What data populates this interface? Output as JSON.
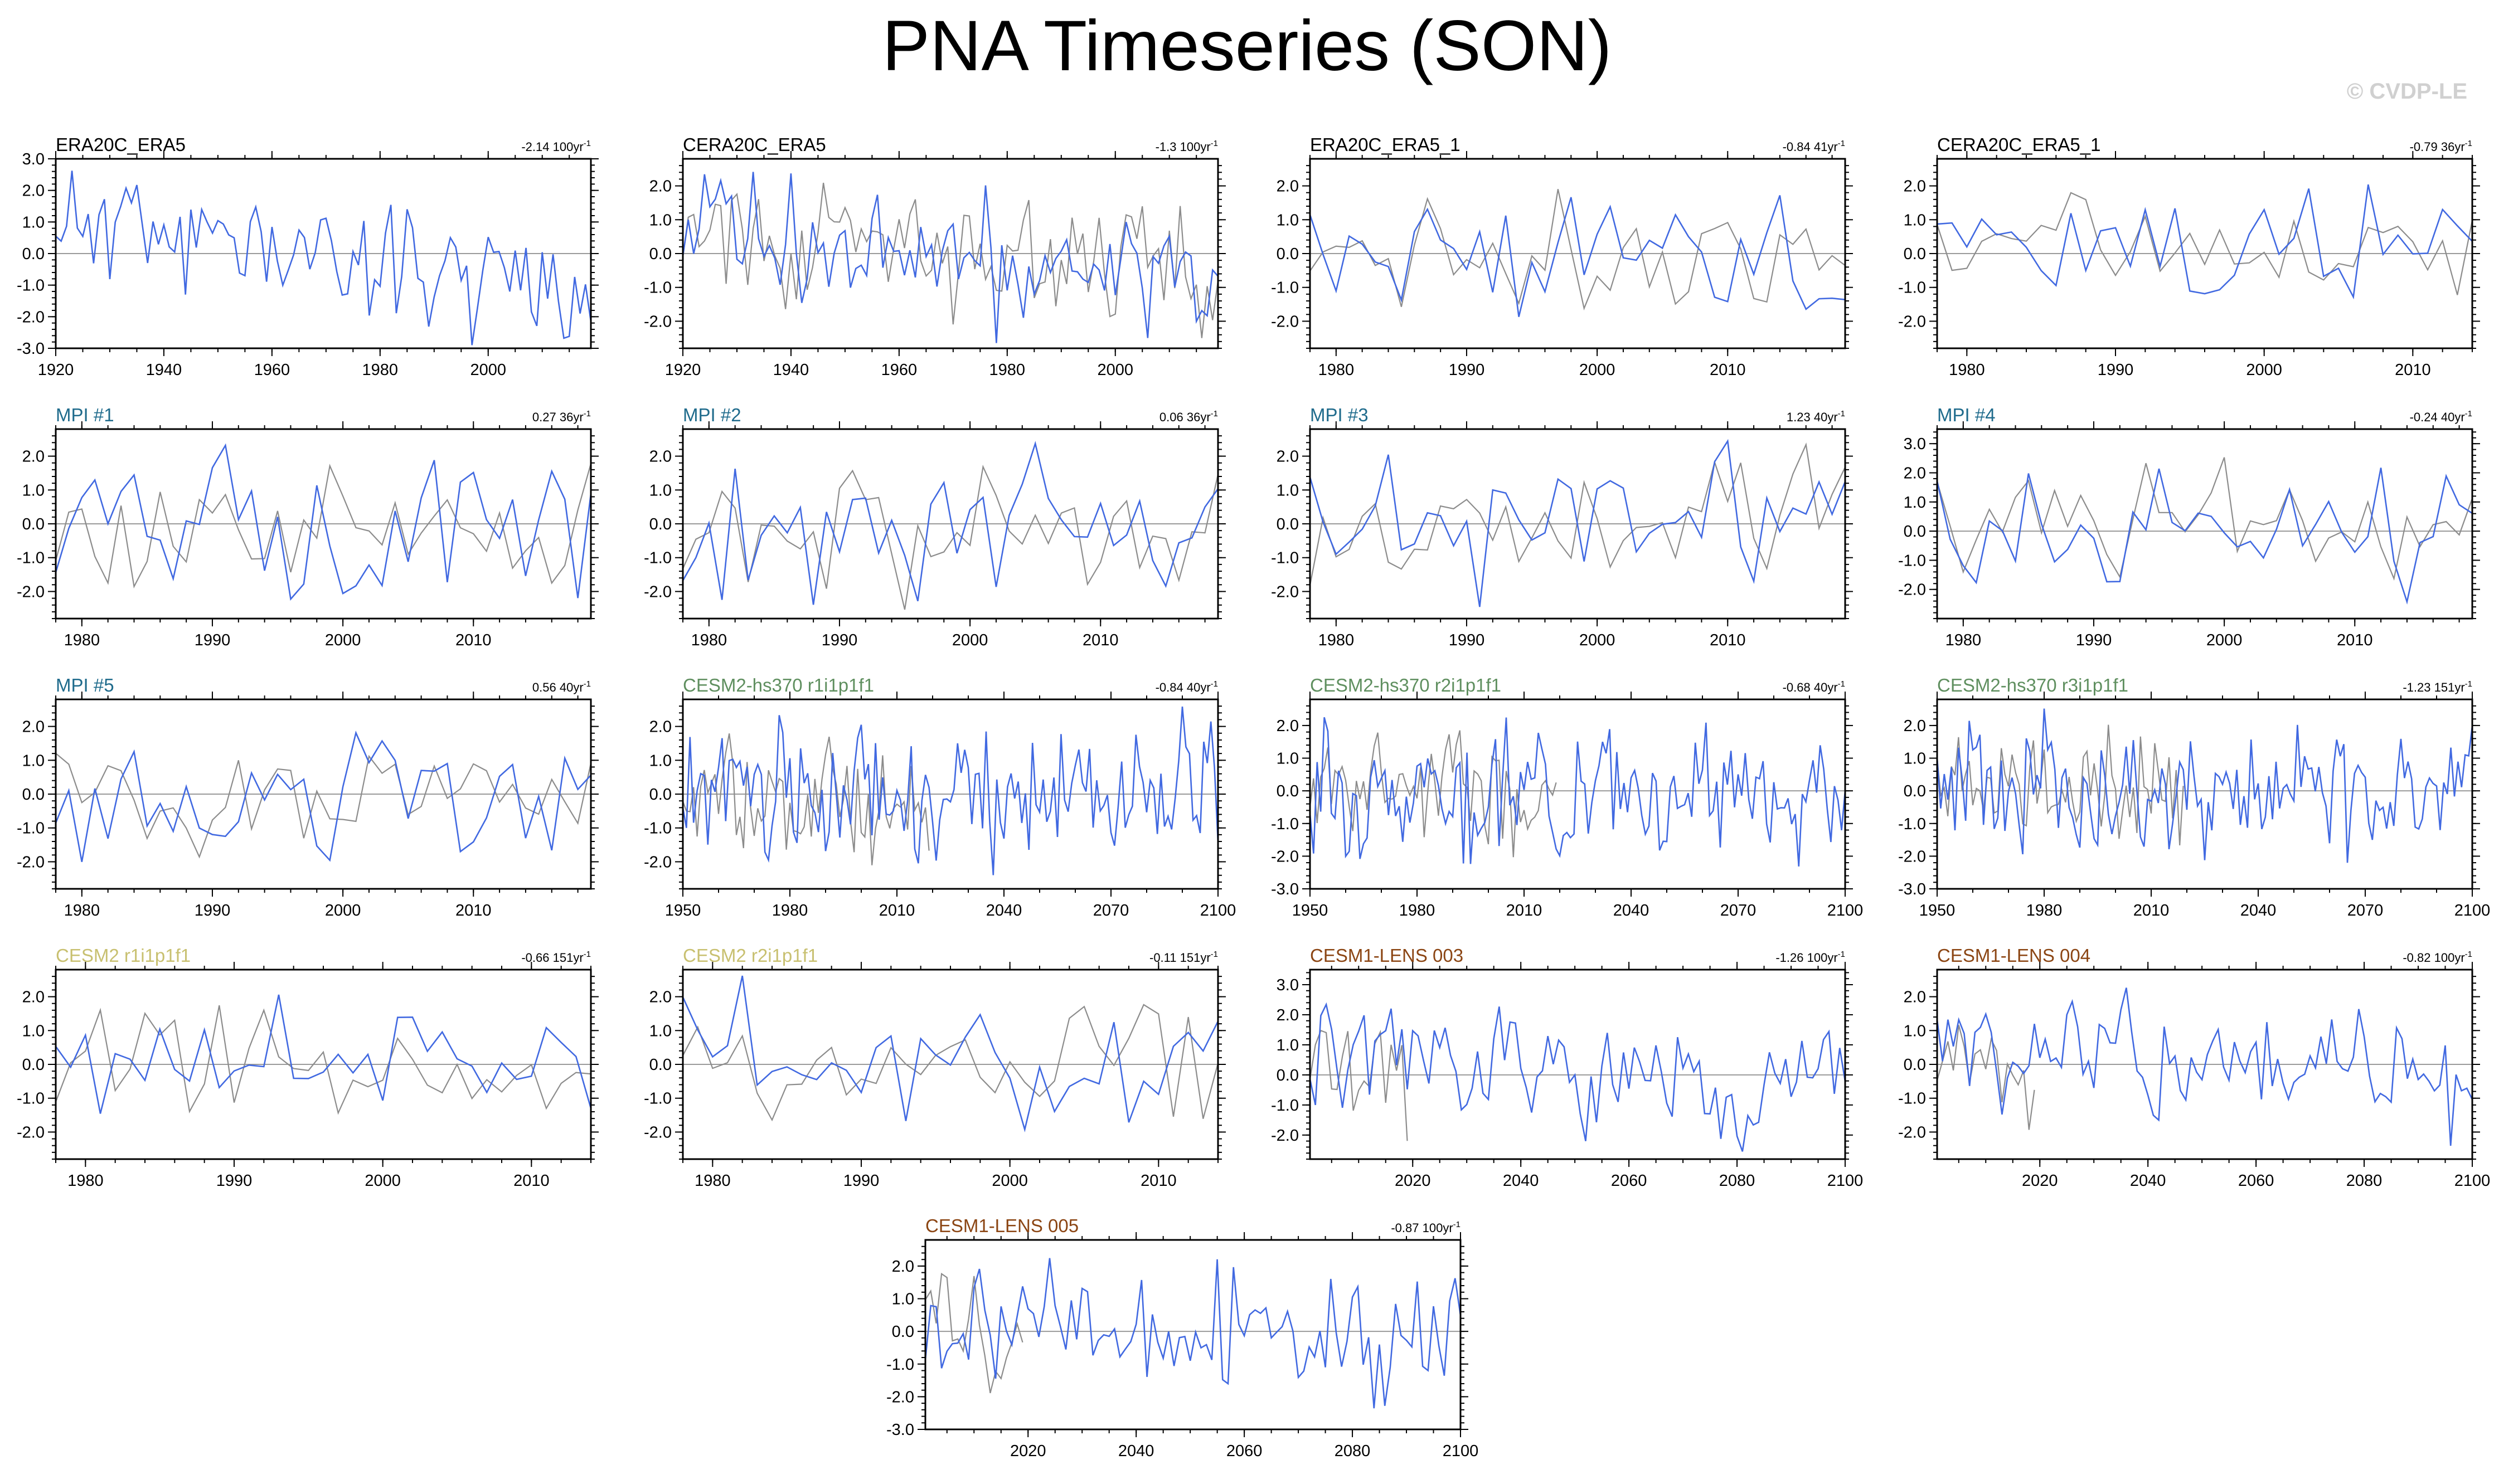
{
  "title": "PNA Timeseries (SON)",
  "credit": "© CVDP-LE",
  "colors": {
    "model": "#4169e1",
    "obs": "#8c8c8c",
    "zero": "#9a9a9a",
    "era": "#000000",
    "mpi": "#1f6b8c",
    "cesm2hs": "#5f8f5f",
    "cesm2": "#c8c070",
    "cesm1": "#8b4513"
  },
  "chart_data": [
    {
      "type": "line",
      "title": "ERA20C_ERA5",
      "title_color": "#000000",
      "trend_value": "-2.14",
      "trend_unit": "100yr",
      "trend_exp": "-1",
      "xlim": [
        1920,
        2019
      ],
      "xticks": [
        1920,
        1940,
        1960,
        1980,
        2000
      ],
      "ylim": [
        -3,
        3
      ],
      "yticks": [
        -3,
        -2,
        -1,
        0,
        1,
        2,
        3
      ],
      "ytick_labels": [
        "-3.0",
        "-2.0",
        "-1.0",
        "0.0",
        "1.0",
        "2.0",
        "3.0"
      ],
      "obs_series": false,
      "seed": 11,
      "amplitude": 0.9,
      "trend": -1.8
    },
    {
      "type": "line",
      "title": "CERA20C_ERA5",
      "title_color": "#000000",
      "trend_value": "-1.3",
      "trend_unit": "100yr",
      "trend_exp": "-1",
      "xlim": [
        1920,
        2019
      ],
      "xticks": [
        1920,
        1940,
        1960,
        1980,
        2000
      ],
      "ylim": [
        -2.8,
        2.8
      ],
      "yticks": [
        -2,
        -1,
        0,
        1,
        2
      ],
      "ytick_labels": [
        "-2.0",
        "-1.0",
        "0.0",
        "1.0",
        "2.0"
      ],
      "obs_series": true,
      "obs_until": 2019,
      "seed": 12,
      "amplitude": 0.95,
      "trend": -1.2
    },
    {
      "type": "line",
      "title": "ERA20C_ERA5_1",
      "title_color": "#000000",
      "trend_value": "-0.84",
      "trend_unit": "41yr",
      "trend_exp": "-1",
      "xlim": [
        1978,
        2019
      ],
      "xticks": [
        1980,
        1990,
        2000,
        2010
      ],
      "ylim": [
        -2.8,
        2.8
      ],
      "yticks": [
        -2,
        -1,
        0,
        1,
        2
      ],
      "ytick_labels": [
        "-2.0",
        "-1.0",
        "0.0",
        "1.0",
        "2.0"
      ],
      "obs_series": true,
      "obs_until": 2019,
      "seed": 13,
      "amplitude": 0.9,
      "trend": -0.5
    },
    {
      "type": "line",
      "title": "CERA20C_ERA5_1",
      "title_color": "#000000",
      "trend_value": "-0.79",
      "trend_unit": "36yr",
      "trend_exp": "-1",
      "xlim": [
        1978,
        2014
      ],
      "xticks": [
        1980,
        1990,
        2000,
        2010
      ],
      "ylim": [
        -2.8,
        2.8
      ],
      "yticks": [
        -2,
        -1,
        0,
        1,
        2
      ],
      "ytick_labels": [
        "-2.0",
        "-1.0",
        "0.0",
        "1.0",
        "2.0"
      ],
      "obs_series": true,
      "obs_until": 2014,
      "seed": 14,
      "amplitude": 0.9,
      "trend": -0.5
    },
    {
      "type": "line",
      "title": "MPI #1",
      "title_color": "#1f6b8c",
      "trend_value": "0.27",
      "trend_unit": "36yr",
      "trend_exp": "-1",
      "xlim": [
        1978,
        2019
      ],
      "xticks": [
        1980,
        1990,
        2000,
        2010
      ],
      "ylim": [
        -2.8,
        2.8
      ],
      "yticks": [
        -2,
        -1,
        0,
        1,
        2
      ],
      "ytick_labels": [
        "-2.0",
        "-1.0",
        "0.0",
        "1.0",
        "2.0"
      ],
      "obs_series": true,
      "obs_until": 2019,
      "seed": 21,
      "amplitude": 0.95,
      "trend": 0.1
    },
    {
      "type": "line",
      "title": "MPI #2",
      "title_color": "#1f6b8c",
      "trend_value": "0.06",
      "trend_unit": "36yr",
      "trend_exp": "-1",
      "xlim": [
        1978,
        2019
      ],
      "xticks": [
        1980,
        1990,
        2000,
        2010
      ],
      "ylim": [
        -2.8,
        2.8
      ],
      "yticks": [
        -2,
        -1,
        0,
        1,
        2
      ],
      "ytick_labels": [
        "-2.0",
        "-1.0",
        "0.0",
        "1.0",
        "2.0"
      ],
      "obs_series": true,
      "obs_until": 2019,
      "seed": 22,
      "amplitude": 0.95,
      "trend": 0.0
    },
    {
      "type": "line",
      "title": "MPI #3",
      "title_color": "#1f6b8c",
      "trend_value": "1.23",
      "trend_unit": "40yr",
      "trend_exp": "-1",
      "xlim": [
        1978,
        2019
      ],
      "xticks": [
        1980,
        1990,
        2000,
        2010
      ],
      "ylim": [
        -2.8,
        2.8
      ],
      "yticks": [
        -2,
        -1,
        0,
        1,
        2
      ],
      "ytick_labels": [
        "-2.0",
        "-1.0",
        "0.0",
        "1.0",
        "2.0"
      ],
      "obs_series": true,
      "obs_until": 2019,
      "seed": 23,
      "amplitude": 0.95,
      "trend": 0.9
    },
    {
      "type": "line",
      "title": "MPI #4",
      "title_color": "#1f6b8c",
      "trend_value": "-0.24",
      "trend_unit": "40yr",
      "trend_exp": "-1",
      "xlim": [
        1978,
        2019
      ],
      "xticks": [
        1980,
        1990,
        2000,
        2010
      ],
      "ylim": [
        -3,
        3.5
      ],
      "yticks": [
        -2,
        -1,
        0,
        1,
        2,
        3
      ],
      "ytick_labels": [
        "-2.0",
        "-1.0",
        "0.0",
        "1.0",
        "2.0",
        "3.0"
      ],
      "obs_series": true,
      "obs_until": 2019,
      "seed": 24,
      "amplitude": 1.0,
      "trend": -0.2
    },
    {
      "type": "line",
      "title": "MPI #5",
      "title_color": "#1f6b8c",
      "trend_value": "0.56",
      "trend_unit": "40yr",
      "trend_exp": "-1",
      "xlim": [
        1978,
        2019
      ],
      "xticks": [
        1980,
        1990,
        2000,
        2010
      ],
      "ylim": [
        -2.8,
        2.8
      ],
      "yticks": [
        -2,
        -1,
        0,
        1,
        2
      ],
      "ytick_labels": [
        "-2.0",
        "-1.0",
        "0.0",
        "1.0",
        "2.0"
      ],
      "obs_series": true,
      "obs_until": 2019,
      "seed": 25,
      "amplitude": 0.95,
      "trend": 0.4
    },
    {
      "type": "line",
      "title": "CESM2-hs370 r1i1p1f1",
      "title_color": "#5f8f5f",
      "trend_value": "-0.84",
      "trend_unit": "40yr",
      "trend_exp": "-1",
      "xlim": [
        1950,
        2100
      ],
      "xticks": [
        1950,
        1980,
        2010,
        2040,
        2070,
        2100
      ],
      "ylim": [
        -2.8,
        2.8
      ],
      "yticks": [
        -2,
        -1,
        0,
        1,
        2
      ],
      "ytick_labels": [
        "-2.0",
        "-1.0",
        "0.0",
        "1.0",
        "2.0"
      ],
      "obs_series": true,
      "obs_until": 2019,
      "seed": 31,
      "amplitude": 0.95,
      "trend": -0.2
    },
    {
      "type": "line",
      "title": "CESM2-hs370 r2i1p1f1",
      "title_color": "#5f8f5f",
      "trend_value": "-0.68",
      "trend_unit": "40yr",
      "trend_exp": "-1",
      "xlim": [
        1950,
        2100
      ],
      "xticks": [
        1950,
        1980,
        2010,
        2040,
        2070,
        2100
      ],
      "ylim": [
        -3,
        2.8
      ],
      "yticks": [
        -3,
        -2,
        -1,
        0,
        1,
        2
      ],
      "ytick_labels": [
        "-3.0",
        "-2.0",
        "-1.0",
        "0.0",
        "1.0",
        "2.0"
      ],
      "obs_series": true,
      "obs_until": 2019,
      "seed": 32,
      "amplitude": 0.95,
      "trend": -0.2
    },
    {
      "type": "line",
      "title": "CESM2-hs370 r3i1p1f1",
      "title_color": "#5f8f5f",
      "trend_value": "-1.23",
      "trend_unit": "151yr",
      "trend_exp": "-1",
      "xlim": [
        1950,
        2100
      ],
      "xticks": [
        1950,
        1980,
        2010,
        2040,
        2070,
        2100
      ],
      "ylim": [
        -3,
        2.8
      ],
      "yticks": [
        -3,
        -2,
        -1,
        0,
        1,
        2
      ],
      "ytick_labels": [
        "-3.0",
        "-2.0",
        "-1.0",
        "0.0",
        "1.0",
        "2.0"
      ],
      "obs_series": true,
      "obs_until": 2019,
      "seed": 33,
      "amplitude": 0.95,
      "trend": -0.4
    },
    {
      "type": "line",
      "title": "CESM2 r1i1p1f1",
      "title_color": "#c8c070",
      "trend_value": "-0.66",
      "trend_unit": "151yr",
      "trend_exp": "-1",
      "xlim": [
        1978,
        2014
      ],
      "xticks": [
        1980,
        1990,
        2000,
        2010
      ],
      "ylim": [
        -2.8,
        2.8
      ],
      "yticks": [
        -2,
        -1,
        0,
        1,
        2
      ],
      "ytick_labels": [
        "-2.0",
        "-1.0",
        "0.0",
        "1.0",
        "2.0"
      ],
      "obs_series": true,
      "obs_until": 2014,
      "seed": 41,
      "amplitude": 0.95,
      "trend": -0.3
    },
    {
      "type": "line",
      "title": "CESM2 r2i1p1f1",
      "title_color": "#c8c070",
      "trend_value": "-0.11",
      "trend_unit": "151yr",
      "trend_exp": "-1",
      "xlim": [
        1978,
        2014
      ],
      "xticks": [
        1980,
        1990,
        2000,
        2010
      ],
      "ylim": [
        -2.8,
        2.8
      ],
      "yticks": [
        -2,
        -1,
        0,
        1,
        2
      ],
      "ytick_labels": [
        "-2.0",
        "-1.0",
        "0.0",
        "1.0",
        "2.0"
      ],
      "obs_series": true,
      "obs_until": 2014,
      "seed": 42,
      "amplitude": 0.95,
      "trend": 0.0
    },
    {
      "type": "line",
      "title": "CESM1-LENS 003",
      "title_color": "#8b4513",
      "trend_value": "-1.26",
      "trend_unit": "100yr",
      "trend_exp": "-1",
      "xlim": [
        2001,
        2100
      ],
      "xticks": [
        2020,
        2040,
        2060,
        2080,
        2100
      ],
      "ylim": [
        -2.8,
        3.5
      ],
      "yticks": [
        -2,
        -1,
        0,
        1,
        2,
        3
      ],
      "ytick_labels": [
        "-2.0",
        "-1.0",
        "0.0",
        "1.0",
        "2.0",
        "3.0"
      ],
      "obs_series": true,
      "obs_until": 2019,
      "seed": 51,
      "amplitude": 0.95,
      "trend": -1.0
    },
    {
      "type": "line",
      "title": "CESM1-LENS 004",
      "title_color": "#8b4513",
      "trend_value": "-0.82",
      "trend_unit": "100yr",
      "trend_exp": "-1",
      "xlim": [
        2001,
        2100
      ],
      "xticks": [
        2020,
        2040,
        2060,
        2080,
        2100
      ],
      "ylim": [
        -2.8,
        2.8
      ],
      "yticks": [
        -2,
        -1,
        0,
        1,
        2
      ],
      "ytick_labels": [
        "-2.0",
        "-1.0",
        "0.0",
        "1.0",
        "2.0"
      ],
      "obs_series": true,
      "obs_until": 2019,
      "seed": 52,
      "amplitude": 0.95,
      "trend": -0.7
    },
    {
      "type": "line",
      "title": "CESM1-LENS 005",
      "title_color": "#8b4513",
      "trend_value": "-0.87",
      "trend_unit": "100yr",
      "trend_exp": "-1",
      "xlim": [
        2001,
        2100
      ],
      "xticks": [
        2020,
        2040,
        2060,
        2080,
        2100
      ],
      "ylim": [
        -3,
        2.8
      ],
      "yticks": [
        -3,
        -2,
        -1,
        0,
        1,
        2
      ],
      "ytick_labels": [
        "-3.0",
        "-2.0",
        "-1.0",
        "0.0",
        "1.0",
        "2.0"
      ],
      "obs_series": true,
      "obs_until": 2019,
      "seed": 53,
      "amplitude": 0.95,
      "trend": -0.7
    }
  ]
}
